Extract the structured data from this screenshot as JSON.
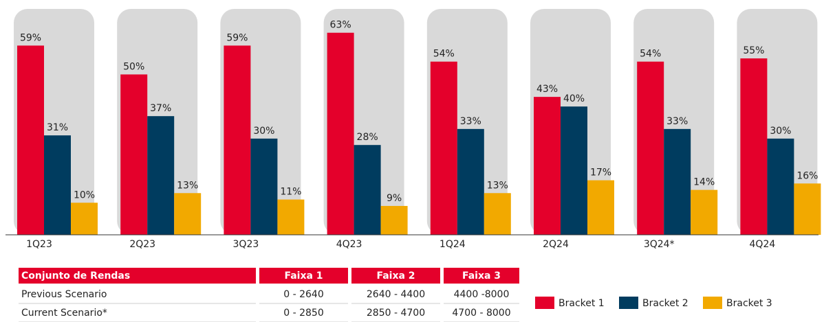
{
  "chart_data": {
    "type": "bar",
    "categories": [
      "1Q23",
      "2Q23",
      "3Q23",
      "4Q23",
      "1Q24",
      "2Q24",
      "3Q24*",
      "4Q24"
    ],
    "series": [
      {
        "name": "Bracket 1",
        "color": "#e4002b",
        "values": [
          59,
          50,
          59,
          63,
          54,
          43,
          54,
          55
        ],
        "value_labels": [
          "59%",
          "50%",
          "59%",
          "63%",
          "54%",
          "43%",
          "54%",
          "55%"
        ]
      },
      {
        "name": "Bracket 2",
        "color": "#003c5f",
        "values": [
          31,
          37,
          30,
          28,
          33,
          40,
          33,
          30
        ],
        "value_labels": [
          "31%",
          "37%",
          "30%",
          "28%",
          "33%",
          "40%",
          "33%",
          "30%"
        ]
      },
      {
        "name": "Bracket 3",
        "color": "#f2a900",
        "values": [
          10,
          13,
          11,
          9,
          13,
          17,
          14,
          16
        ],
        "value_labels": [
          "10%",
          "13%",
          "11%",
          "9%",
          "13%",
          "17%",
          "14%",
          "16%"
        ]
      }
    ],
    "ylim": [
      0,
      70
    ],
    "legend": "bottom-right"
  },
  "table": {
    "header": [
      "Conjunto de Rendas",
      "Faixa 1",
      "Faixa 2",
      "Faixa 3"
    ],
    "rows": [
      [
        "Previous Scenario",
        "0 - 2640",
        "2640 - 4400",
        "4400 -8000"
      ],
      [
        "Current Scenario*",
        "0 - 2850",
        "2850 - 4700",
        "4700 - 8000"
      ]
    ]
  }
}
